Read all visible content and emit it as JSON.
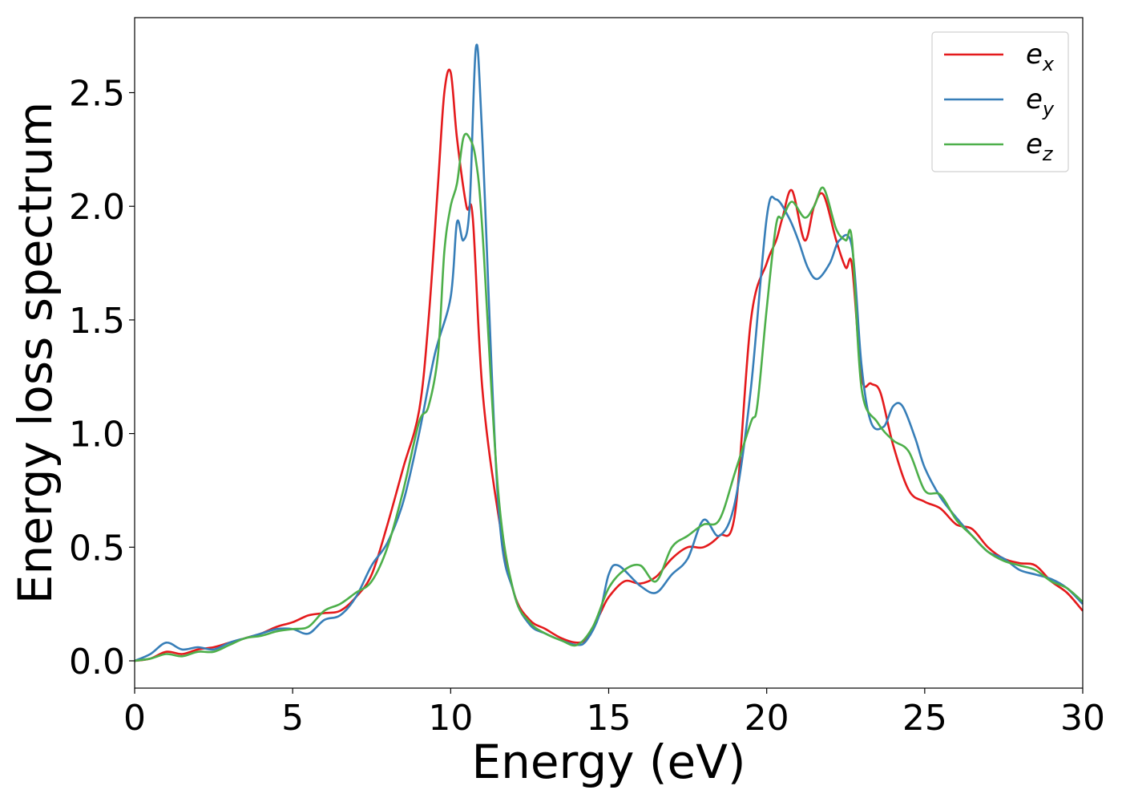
{
  "chart_data": {
    "type": "line",
    "xlabel": "Energy (eV)",
    "ylabel": "Energy loss spectrum",
    "xlim": [
      0,
      30
    ],
    "ylim": [
      -0.12,
      2.83
    ],
    "xticks": [
      "0",
      "5",
      "10",
      "15",
      "20",
      "25",
      "30"
    ],
    "yticks": [
      "0.0",
      "0.5",
      "1.0",
      "1.5",
      "2.0",
      "2.5"
    ],
    "grid": false,
    "legend_position": "top-right",
    "series": [
      {
        "name": "e",
        "subscript": "x",
        "color": "#e41a1c",
        "x": [
          0,
          0.5,
          1,
          1.5,
          2,
          2.5,
          3,
          3.5,
          4,
          4.5,
          5,
          5.5,
          6,
          6.5,
          7,
          7.5,
          8,
          8.5,
          9,
          9.3,
          9.6,
          9.8,
          10,
          10.2,
          10.5,
          10.7,
          11,
          11.5,
          12,
          12.5,
          13,
          13.5,
          14,
          14.3,
          14.7,
          15,
          15.5,
          16,
          16.5,
          17,
          17.5,
          18,
          18.5,
          19,
          19.5,
          20,
          20.3,
          20.5,
          20.8,
          21.2,
          21.5,
          21.8,
          22.2,
          22.5,
          22.7,
          23,
          23.3,
          23.6,
          24,
          24.5,
          25,
          25.5,
          26,
          26.5,
          27,
          27.5,
          28,
          28.5,
          29,
          29.5,
          30
        ],
        "values": [
          0.0,
          0.01,
          0.04,
          0.03,
          0.05,
          0.06,
          0.08,
          0.1,
          0.12,
          0.15,
          0.17,
          0.2,
          0.21,
          0.22,
          0.28,
          0.38,
          0.6,
          0.85,
          1.1,
          1.5,
          2.1,
          2.5,
          2.59,
          2.3,
          2.0,
          1.95,
          1.2,
          0.65,
          0.3,
          0.18,
          0.14,
          0.1,
          0.08,
          0.1,
          0.2,
          0.28,
          0.35,
          0.34,
          0.37,
          0.45,
          0.5,
          0.5,
          0.55,
          0.65,
          1.5,
          1.75,
          1.85,
          1.95,
          2.07,
          1.85,
          2.0,
          2.05,
          1.85,
          1.73,
          1.74,
          1.25,
          1.22,
          1.18,
          0.95,
          0.75,
          0.7,
          0.67,
          0.6,
          0.58,
          0.5,
          0.45,
          0.43,
          0.42,
          0.35,
          0.3,
          0.22
        ]
      },
      {
        "name": "e",
        "subscript": "y",
        "color": "#377eb8",
        "x": [
          0,
          0.5,
          1,
          1.5,
          2,
          2.5,
          3,
          3.5,
          4,
          4.5,
          5,
          5.5,
          6,
          6.5,
          7,
          7.5,
          8,
          8.5,
          9,
          9.5,
          10,
          10.2,
          10.4,
          10.6,
          10.8,
          11,
          11.5,
          12,
          12.5,
          13,
          13.5,
          14,
          14.3,
          14.7,
          15,
          15.3,
          16,
          16.5,
          17,
          17.5,
          18,
          18.5,
          19,
          19.5,
          20,
          20.3,
          20.7,
          21,
          21.3,
          21.6,
          22,
          22.3,
          22.7,
          23,
          23.3,
          23.7,
          24,
          24.3,
          24.7,
          25,
          25.5,
          26,
          26.5,
          27,
          27.5,
          28,
          28.5,
          29,
          29.5,
          30
        ],
        "values": [
          0.0,
          0.03,
          0.08,
          0.05,
          0.06,
          0.05,
          0.08,
          0.1,
          0.12,
          0.14,
          0.14,
          0.12,
          0.18,
          0.2,
          0.28,
          0.42,
          0.52,
          0.7,
          1.0,
          1.35,
          1.6,
          1.93,
          1.85,
          2.0,
          2.7,
          2.3,
          0.7,
          0.3,
          0.16,
          0.12,
          0.09,
          0.07,
          0.09,
          0.2,
          0.38,
          0.42,
          0.33,
          0.3,
          0.38,
          0.45,
          0.62,
          0.55,
          0.7,
          1.2,
          1.95,
          2.03,
          1.95,
          1.85,
          1.73,
          1.68,
          1.75,
          1.85,
          1.82,
          1.3,
          1.05,
          1.03,
          1.12,
          1.12,
          0.98,
          0.85,
          0.72,
          0.63,
          0.55,
          0.48,
          0.45,
          0.4,
          0.38,
          0.36,
          0.32,
          0.25
        ]
      },
      {
        "name": "e",
        "subscript": "z",
        "color": "#4daf4a",
        "x": [
          0,
          0.5,
          1,
          1.5,
          2,
          2.5,
          3,
          3.5,
          4,
          4.5,
          5,
          5.5,
          6,
          6.5,
          7,
          7.5,
          8,
          8.5,
          9,
          9.3,
          9.6,
          9.8,
          10,
          10.2,
          10.4,
          10.6,
          10.8,
          11,
          11.5,
          12,
          12.5,
          13,
          13.5,
          14,
          14.5,
          15,
          15.5,
          16,
          16.5,
          17,
          17.5,
          18,
          18.5,
          19,
          19.5,
          19.7,
          20,
          20.3,
          20.5,
          20.8,
          21.2,
          21.5,
          21.8,
          22.2,
          22.5,
          22.7,
          23,
          23.5,
          24,
          24.5,
          25,
          25.5,
          26,
          26.5,
          27,
          27.5,
          28,
          28.5,
          29,
          29.5,
          30
        ],
        "values": [
          0.0,
          0.01,
          0.03,
          0.02,
          0.04,
          0.04,
          0.07,
          0.1,
          0.11,
          0.13,
          0.14,
          0.15,
          0.22,
          0.25,
          0.3,
          0.35,
          0.5,
          0.75,
          1.05,
          1.12,
          1.35,
          1.8,
          2.0,
          2.1,
          2.3,
          2.3,
          2.2,
          1.9,
          0.75,
          0.3,
          0.17,
          0.12,
          0.09,
          0.07,
          0.15,
          0.32,
          0.4,
          0.42,
          0.35,
          0.5,
          0.55,
          0.6,
          0.62,
          0.83,
          1.05,
          1.12,
          1.55,
          1.92,
          1.95,
          2.02,
          1.95,
          2.0,
          2.08,
          1.9,
          1.85,
          1.85,
          1.2,
          1.05,
          0.97,
          0.92,
          0.75,
          0.73,
          0.62,
          0.55,
          0.48,
          0.44,
          0.42,
          0.4,
          0.35,
          0.32,
          0.26
        ]
      }
    ]
  }
}
